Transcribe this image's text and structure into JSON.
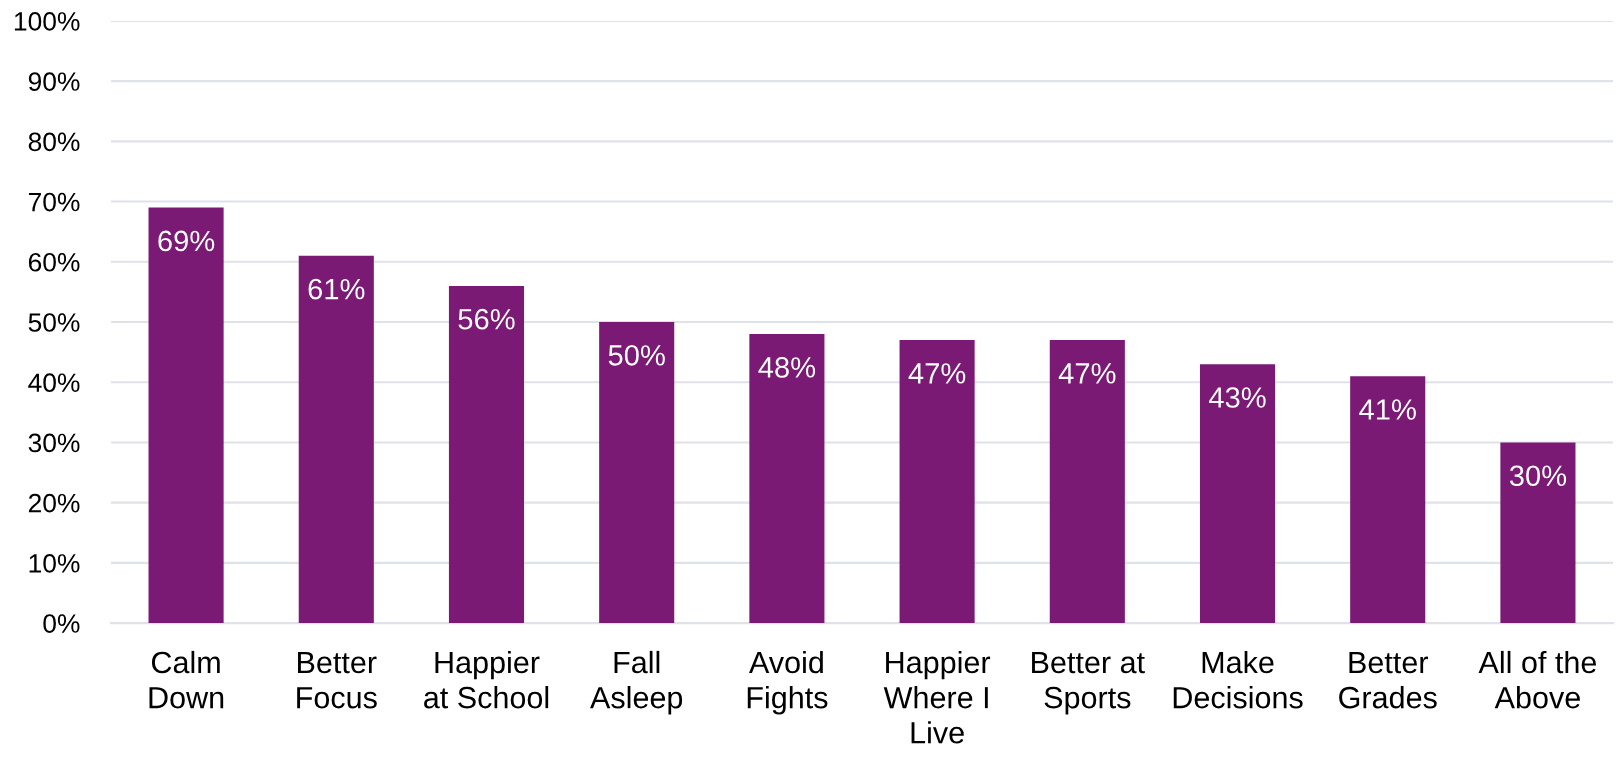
{
  "chart_data": {
    "type": "bar",
    "categories": [
      "Calm\nDown",
      "Better\nFocus",
      "Happier\nat School",
      "Fall\nAsleep",
      "Avoid\nFights",
      "Happier\nWhere I\nLive",
      "Better at\nSports",
      "Make\nDecisions",
      "Better\nGrades",
      "All of the\nAbove"
    ],
    "values": [
      69,
      61,
      56,
      50,
      48,
      47,
      47,
      43,
      41,
      30
    ],
    "value_labels": [
      "69%",
      "61%",
      "56%",
      "50%",
      "48%",
      "47%",
      "47%",
      "43%",
      "41%",
      "30%"
    ],
    "color": "#7a1a74",
    "ylim": [
      0,
      100
    ],
    "yticks": [
      {
        "value": 0,
        "label": "0%"
      },
      {
        "value": 10,
        "label": "10%"
      },
      {
        "value": 20,
        "label": "20%"
      },
      {
        "value": 30,
        "label": "30%"
      },
      {
        "value": 40,
        "label": "40%"
      },
      {
        "value": 50,
        "label": "50%"
      },
      {
        "value": 60,
        "label": "60%"
      },
      {
        "value": 70,
        "label": "70%"
      },
      {
        "value": 80,
        "label": "80%"
      },
      {
        "value": 90,
        "label": "90%"
      },
      {
        "value": 100,
        "label": "100%"
      }
    ],
    "grid": "y",
    "legend": false
  }
}
